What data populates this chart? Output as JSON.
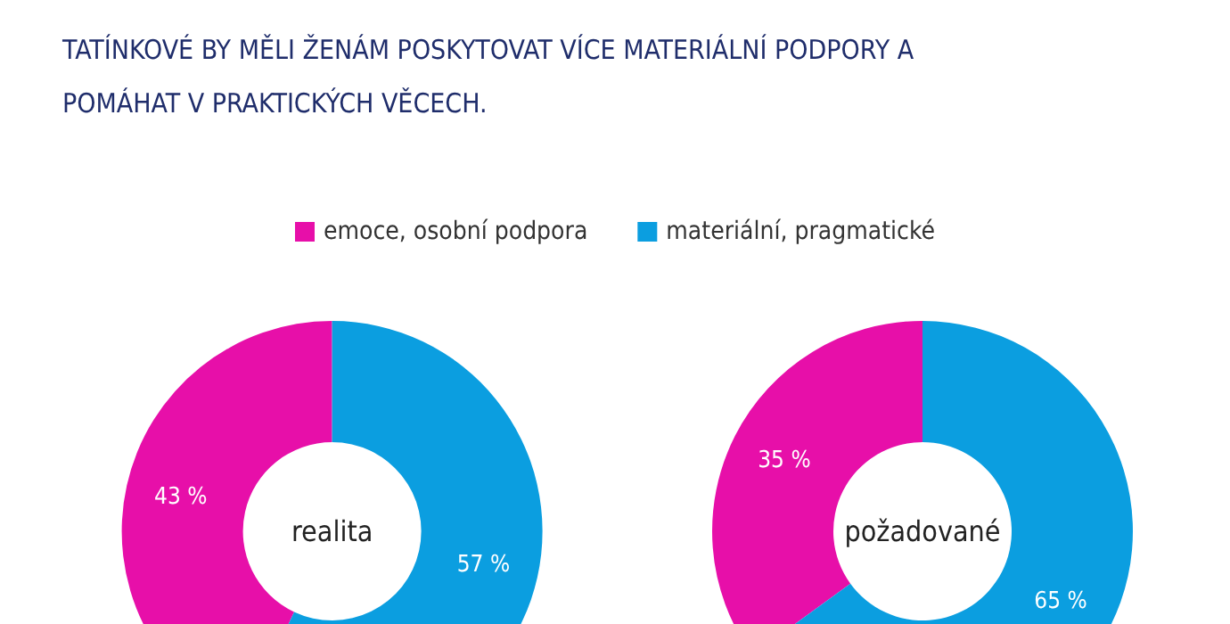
{
  "chart_data": {
    "type": "donut",
    "title": "TATÍNKOVÉ BY MĚLI ŽENÁM POSKYTOVAT VÍCE MATERIÁLNÍ PODPORY A POMÁHAT V PRAKTICKÝCH VĚCECH.",
    "categories": [
      "emoce, osobní podpora",
      "materiální, pragmatické"
    ],
    "colors": [
      "#e70fa9",
      "#0b9ee0"
    ],
    "legend": "top",
    "series": [
      {
        "name": "realita",
        "values": [
          43,
          57
        ],
        "value_labels": [
          "43 %",
          "57 %"
        ]
      },
      {
        "name": "požadované",
        "values": [
          35,
          65
        ],
        "value_labels": [
          "35 %",
          "65 %"
        ]
      }
    ]
  }
}
